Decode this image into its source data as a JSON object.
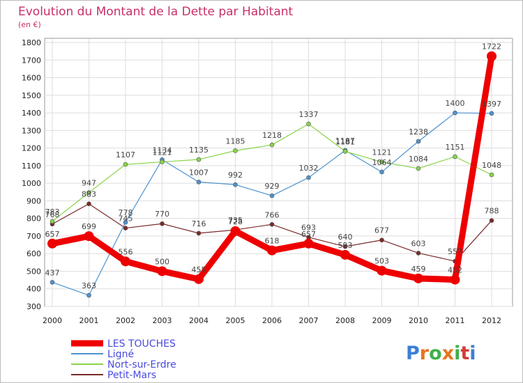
{
  "colors": {
    "title": "#c8306a",
    "legend_text": "#4a4ae0",
    "grid": "#dddddd",
    "plot_border": "#999999"
  },
  "brand": {
    "letters": [
      "P",
      "r",
      "o",
      "x",
      "i",
      "t",
      "i"
    ],
    "colors": [
      "#3b7fd6",
      "#e8741c",
      "#3fb04a",
      "#e8741c",
      "#3fb04a",
      "#d43a3a",
      "#3b7fd6"
    ]
  },
  "chart_data": {
    "type": "line",
    "title": "Evolution du Montant de la Dette par Habitant",
    "subtitle": "(en €)",
    "x": [
      "2000",
      "2001",
      "2002",
      "2003",
      "2004",
      "2005",
      "2006",
      "2007",
      "2008",
      "2009",
      "2010",
      "2011",
      "2012"
    ],
    "ylim": [
      300,
      1800
    ],
    "yticks": [
      300,
      400,
      500,
      600,
      700,
      800,
      900,
      1000,
      1100,
      1200,
      1300,
      1400,
      1500,
      1600,
      1700,
      1800
    ],
    "grid": true,
    "legend_position": "bottom-left",
    "series": [
      {
        "name": "LES TOUCHES",
        "color": "#ee0000",
        "values": [
          657,
          699,
          556,
          500,
          455,
          728,
          618,
          657,
          593,
          503,
          459,
          452,
          1722
        ]
      },
      {
        "name": "Ligné",
        "color": "#4e93cf",
        "values": [
          437,
          363,
          778,
          1134,
          1007,
          992,
          929,
          1032,
          1187,
          1064,
          1238,
          1400,
          1397
        ]
      },
      {
        "name": "Nort-sur-Erdre",
        "color": "#88d44a",
        "values": [
          783,
          947,
          1107,
          1121,
          1135,
          1185,
          1218,
          1337,
          1181,
          1121,
          1084,
          1151,
          1048
        ]
      },
      {
        "name": "Petit-Mars",
        "color": "#7a2a2a",
        "values": [
          768,
          883,
          745,
          770,
          716,
          735,
          766,
          693,
          640,
          677,
          603,
          557,
          788
        ]
      }
    ]
  }
}
